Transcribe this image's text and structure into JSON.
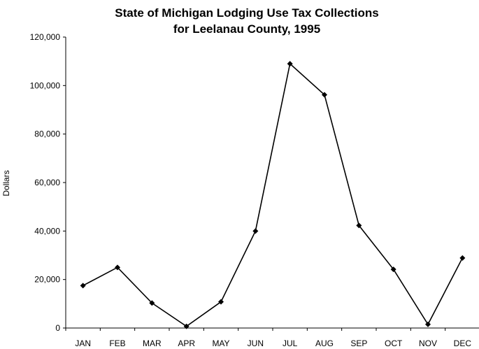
{
  "chart_data": {
    "type": "line",
    "title_lines": [
      "State of Michigan Lodging Use Tax Collections",
      "for Leelanau County, 1995"
    ],
    "xlabel": "",
    "ylabel": "Dollars",
    "categories": [
      "JAN",
      "FEB",
      "MAR",
      "APR",
      "MAY",
      "JUN",
      "JUL",
      "AUG",
      "SEP",
      "OCT",
      "NOV",
      "DEC"
    ],
    "series": [
      {
        "values": [
          17500,
          25000,
          10300,
          700,
          10800,
          40000,
          109000,
          96200,
          42300,
          24200,
          1500,
          28900
        ]
      }
    ],
    "ylim": [
      0,
      120000
    ],
    "yticks": [
      0,
      20000,
      40000,
      60000,
      80000,
      100000,
      120000
    ],
    "ytick_labels": [
      "0",
      "20,000",
      "40,000",
      "60,000",
      "80,000",
      "100,000",
      "120,000"
    ],
    "grid": false,
    "legend": "none",
    "line_color": "#000000",
    "marker": "diamond"
  }
}
